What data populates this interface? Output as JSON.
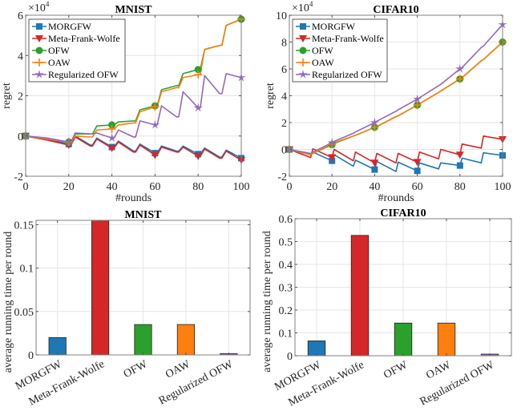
{
  "chart_data": [
    {
      "type": "line",
      "title": "MNIST",
      "xlabel": "#rounds",
      "ylabel": "regret",
      "exponent_label": "×10^4",
      "xlim": [
        0,
        100
      ],
      "ylim": [
        -2,
        6
      ],
      "xticks": [
        "0",
        "20",
        "40",
        "60",
        "80",
        "100"
      ],
      "yticks": [
        "-2",
        "0",
        "2",
        "4",
        "6"
      ],
      "grid": true,
      "legend_position": "top-left",
      "x": [
        0,
        10,
        20,
        21,
        23,
        30,
        31,
        33,
        40,
        41,
        43,
        50,
        51,
        53,
        60,
        61,
        63,
        70,
        71,
        73,
        80,
        81,
        83,
        90,
        91,
        93,
        100
      ],
      "series": [
        {
          "name": "MORGFW",
          "color": "#1f77b4",
          "marker": "square",
          "values": [
            0,
            -0.15,
            -0.4,
            -0.4,
            0,
            -0.45,
            -0.45,
            -0.1,
            -0.55,
            -0.55,
            -0.25,
            -0.75,
            -0.75,
            -0.4,
            -0.85,
            -0.85,
            -0.5,
            -0.75,
            -0.75,
            -0.5,
            -0.9,
            -0.9,
            -0.6,
            -1.05,
            -1.05,
            -0.7,
            -1.1
          ]
        },
        {
          "name": "Meta-Frank-Wolfe",
          "color": "#d62728",
          "marker": "triangle-down",
          "values": [
            0,
            -0.2,
            -0.45,
            -0.45,
            -0.05,
            -0.5,
            -0.5,
            -0.15,
            -0.6,
            -0.6,
            -0.3,
            -0.8,
            -0.8,
            -0.45,
            -0.95,
            -0.95,
            -0.55,
            -0.8,
            -0.8,
            -0.55,
            -1.0,
            -1.0,
            -0.65,
            -1.1,
            -1.1,
            -0.75,
            -1.2
          ]
        },
        {
          "name": "OFW",
          "color": "#2ca02c",
          "marker": "circle",
          "values": [
            0,
            -0.15,
            -0.3,
            -0.3,
            0.1,
            0.1,
            0.1,
            0.5,
            0.55,
            0.55,
            0.7,
            0.75,
            0.75,
            1.3,
            1.5,
            1.5,
            2.3,
            2.5,
            2.5,
            3.1,
            3.3,
            3.3,
            4.3,
            4.5,
            4.5,
            5.5,
            5.8
          ]
        },
        {
          "name": "OAW",
          "color": "#ff7f0e",
          "marker": "plus",
          "values": [
            0,
            -0.15,
            -0.3,
            -0.3,
            0.0,
            -0.05,
            -0.05,
            0.3,
            0.35,
            0.35,
            0.55,
            0.65,
            0.65,
            1.2,
            1.45,
            1.45,
            2.2,
            2.4,
            2.4,
            2.9,
            3.05,
            3.05,
            4.3,
            4.5,
            4.5,
            5.5,
            5.8
          ]
        },
        {
          "name": "Regularized OFW",
          "color": "#9467bd",
          "marker": "star",
          "values": [
            0,
            -0.1,
            -0.3,
            -0.3,
            0.15,
            0.1,
            0.1,
            0.15,
            -0.1,
            -0.1,
            0.3,
            -0.05,
            -0.05,
            0.75,
            0.55,
            0.55,
            1.5,
            0.95,
            0.95,
            2.2,
            1.4,
            1.4,
            3.0,
            2.1,
            2.1,
            3.1,
            2.9
          ]
        }
      ]
    },
    {
      "type": "line",
      "title": "CIFAR10",
      "xlabel": "#rounds",
      "ylabel": "regret",
      "exponent_label": "×10^4",
      "xlim": [
        0,
        100
      ],
      "ylim": [
        -2,
        10
      ],
      "xticks": [
        "0",
        "20",
        "40",
        "60",
        "80",
        "100"
      ],
      "yticks": [
        "-2",
        "0",
        "2",
        "4",
        "6",
        "8",
        "10"
      ],
      "grid": true,
      "legend_position": "top-left",
      "x": [
        0,
        10,
        11,
        20,
        21,
        30,
        31,
        40,
        41,
        50,
        51,
        60,
        61,
        70,
        71,
        80,
        81,
        90,
        91,
        100
      ],
      "series": [
        {
          "name": "MORGFW",
          "color": "#1f77b4",
          "marker": "square",
          "values": [
            0,
            -0.35,
            -0.2,
            -0.85,
            -0.4,
            -1.25,
            -0.8,
            -1.5,
            -0.9,
            -1.65,
            -0.95,
            -1.6,
            -1.0,
            -1.45,
            -1.0,
            -1.2,
            -0.65,
            -1.0,
            -0.25,
            -0.45
          ]
        },
        {
          "name": "Meta-Frank-Wolfe",
          "color": "#d62728",
          "marker": "triangle-down",
          "values": [
            0,
            -0.6,
            0.05,
            -0.6,
            0.0,
            -0.85,
            -0.2,
            -1.0,
            -0.3,
            -1.0,
            -0.3,
            -0.95,
            -0.2,
            -0.7,
            0.0,
            -0.4,
            0.4,
            0.1,
            1.0,
            0.75
          ]
        },
        {
          "name": "OFW",
          "color": "#2ca02c",
          "marker": "circle",
          "values": [
            0,
            -0.4,
            -0.3,
            0.35,
            0.45,
            1.0,
            1.05,
            1.65,
            1.7,
            2.45,
            2.5,
            3.3,
            3.4,
            4.25,
            4.35,
            5.25,
            5.35,
            6.6,
            6.7,
            8.0
          ]
        },
        {
          "name": "OAW",
          "color": "#ff7f0e",
          "marker": "plus",
          "values": [
            0,
            -0.4,
            -0.3,
            0.4,
            0.5,
            1.0,
            1.05,
            1.65,
            1.7,
            2.45,
            2.5,
            3.3,
            3.4,
            4.25,
            4.35,
            5.25,
            5.35,
            6.6,
            6.7,
            8.0
          ]
        },
        {
          "name": "Regularized OFW",
          "color": "#9467bd",
          "marker": "star",
          "values": [
            0,
            -0.3,
            -0.2,
            0.5,
            0.6,
            1.2,
            1.3,
            2.0,
            2.1,
            2.85,
            2.95,
            3.75,
            3.85,
            4.75,
            4.85,
            6.0,
            6.1,
            7.6,
            7.7,
            9.3
          ]
        }
      ]
    },
    {
      "type": "bar",
      "title": "MNIST",
      "xlabel": "",
      "ylabel": "average running time per round",
      "ylim": [
        0,
        0.155
      ],
      "yticks": [
        "0",
        "0.05",
        "0.1",
        "0.15"
      ],
      "grid": true,
      "categories": [
        "MORGFW",
        "Meta-Frank-Wolfe",
        "OFW",
        "OAW",
        "Regularized OFW"
      ],
      "values": [
        0.02,
        0.155,
        0.035,
        0.035,
        0.0015
      ],
      "colors": [
        "#1f77b4",
        "#d62728",
        "#2ca02c",
        "#ff7f0e",
        "#9467bd"
      ]
    },
    {
      "type": "bar",
      "title": "CIFAR10",
      "xlabel": "",
      "ylabel": "average running time per round",
      "ylim": [
        0,
        0.6
      ],
      "yticks": [
        "0",
        "0.1",
        "0.2",
        "0.3",
        "0.4",
        "0.5",
        "0.6"
      ],
      "grid": true,
      "categories": [
        "MORGFW",
        "Meta-Frank-Wolfe",
        "OFW",
        "OAW",
        "Regularized OFW"
      ],
      "values": [
        0.065,
        0.527,
        0.143,
        0.143,
        0.007
      ],
      "colors": [
        "#1f77b4",
        "#d62728",
        "#2ca02c",
        "#ff7f0e",
        "#9467bd"
      ]
    }
  ]
}
